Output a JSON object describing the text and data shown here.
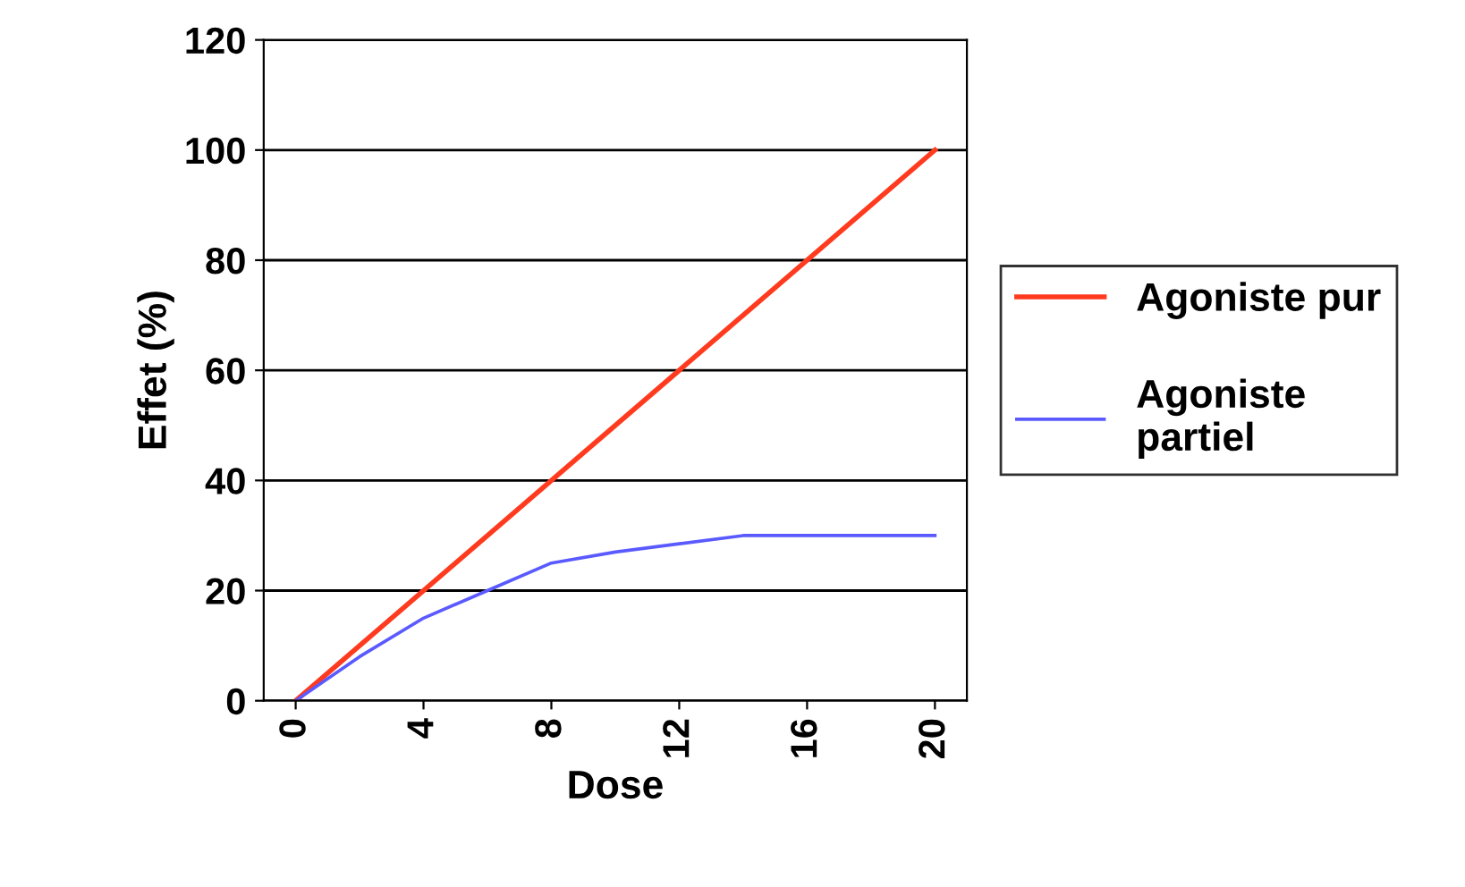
{
  "chart_data": {
    "type": "line",
    "xlabel": "Dose",
    "ylabel": "Effet (%)",
    "xlim": [
      -1,
      21
    ],
    "xticks": [
      0,
      4,
      8,
      12,
      16,
      20
    ],
    "ylim": [
      0,
      120
    ],
    "yticks": [
      0,
      20,
      40,
      60,
      80,
      100,
      120
    ],
    "grid": "y",
    "legend": "right",
    "line_style": "solid",
    "series": [
      {
        "name": "Agoniste pur",
        "color": "#ff3b1f",
        "x": [
          0,
          20
        ],
        "values": [
          0,
          100
        ]
      },
      {
        "name": "Agoniste\npartiel",
        "color": "#5a5aff",
        "x": [
          0,
          2,
          4,
          6,
          8,
          10,
          12,
          14,
          16,
          18,
          20
        ],
        "values": [
          0,
          8,
          15,
          20,
          25,
          27,
          28.5,
          30,
          30,
          30,
          30
        ]
      }
    ]
  }
}
